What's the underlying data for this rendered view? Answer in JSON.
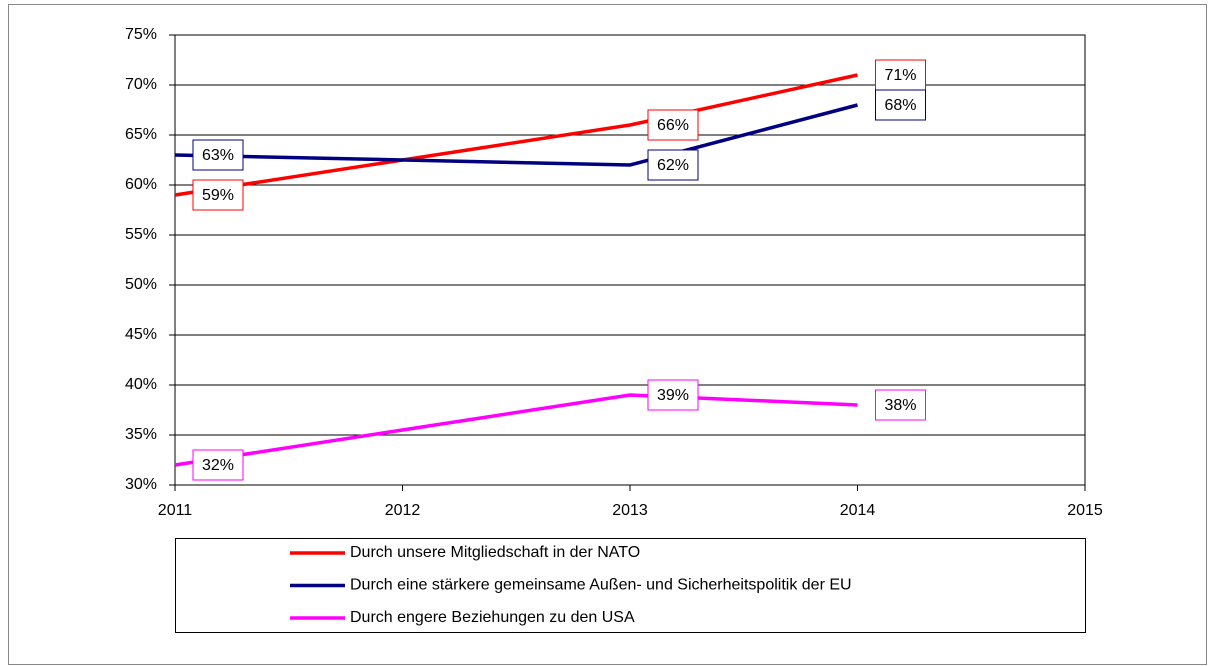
{
  "chart_data": {
    "type": "line",
    "x": [
      2011,
      2013,
      2014
    ],
    "xlim": [
      2011,
      2015
    ],
    "xticks": [
      2011,
      2012,
      2013,
      2014,
      2015
    ],
    "ylim": [
      30,
      75
    ],
    "yticks": [
      {
        "value": 30,
        "label": "30%"
      },
      {
        "value": 35,
        "label": "35%"
      },
      {
        "value": 40,
        "label": "40%"
      },
      {
        "value": 45,
        "label": "45%"
      },
      {
        "value": 50,
        "label": "50%"
      },
      {
        "value": 55,
        "label": "55%"
      },
      {
        "value": 60,
        "label": "60%"
      },
      {
        "value": 65,
        "label": "65%"
      },
      {
        "value": 70,
        "label": "70%"
      },
      {
        "value": 75,
        "label": "75%"
      }
    ],
    "grid": true,
    "legend": "bottom",
    "series": [
      {
        "name": "Durch unsere Mitgliedschaft in der NATO",
        "color": "#ff0000",
        "values": [
          59,
          66,
          71
        ],
        "value_labels": [
          "59%",
          "66%",
          "71%"
        ]
      },
      {
        "name": "Durch eine stärkere gemeinsame Außen- und Sicherheitspolitik der EU",
        "color": "#000080",
        "values": [
          63,
          62,
          68
        ],
        "value_labels": [
          "63%",
          "62%",
          "68%"
        ]
      },
      {
        "name": "Durch engere Beziehungen zu den USA",
        "color": "#ff00ff",
        "values": [
          32,
          39,
          38
        ],
        "value_labels": [
          "32%",
          "39%",
          "38%"
        ]
      }
    ]
  }
}
